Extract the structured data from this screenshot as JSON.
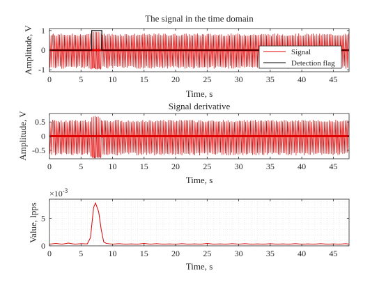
{
  "chart_data": [
    {
      "type": "line",
      "title": "The signal in the time domain",
      "xlabel": "Time, s",
      "ylabel": "Amplitude, V",
      "xlim": [
        0,
        47.5
      ],
      "ylim": [
        -1.1,
        1.1
      ],
      "xticks": [
        0,
        5,
        10,
        15,
        20,
        25,
        30,
        35,
        40,
        45
      ],
      "yticks": [
        -1,
        0,
        1
      ],
      "xtick_labels": [
        "0",
        "5",
        "10",
        "15",
        "20",
        "25",
        "30",
        "35",
        "40",
        "45"
      ],
      "ytick_labels": [
        "-1",
        "0",
        "1"
      ],
      "grid": false,
      "legend_position": "right, inside axes",
      "series": [
        {
          "name": "Signal",
          "color": "#e00000",
          "style": "dense oscillation (pulse train)",
          "segments": [
            {
              "x_range": [
                0,
                6.6
              ],
              "envelope": [
                -0.95,
                0.85
              ]
            },
            {
              "x_range": [
                6.6,
                8.2
              ],
              "envelope": [
                -0.98,
                1.0
              ],
              "note": "saturated burst"
            },
            {
              "x_range": [
                8.2,
                47.5
              ],
              "envelope": [
                -0.95,
                0.85
              ]
            }
          ]
        },
        {
          "name": "Detection flag",
          "color": "#000000",
          "x": [
            0,
            6.7,
            6.7,
            8.3,
            8.3,
            47.5
          ],
          "y": [
            0,
            0,
            1,
            1,
            0,
            0
          ]
        }
      ]
    },
    {
      "type": "line",
      "title": "Signal derivative",
      "xlabel": "Time, s",
      "ylabel": "Amplitude, V",
      "xlim": [
        0,
        47.5
      ],
      "ylim": [
        -0.8,
        0.8
      ],
      "xticks": [
        0,
        5,
        10,
        15,
        20,
        25,
        30,
        35,
        40,
        45
      ],
      "yticks": [
        -0.5,
        0,
        0.5
      ],
      "xtick_labels": [
        "0",
        "5",
        "10",
        "15",
        "20",
        "25",
        "30",
        "35",
        "40",
        "45"
      ],
      "ytick_labels": [
        "-0.5",
        "0",
        "0.5"
      ],
      "grid": false,
      "series": [
        {
          "color": "#e00000",
          "style": "dense oscillation (pulse train)",
          "segments": [
            {
              "x_range": [
                0,
                6.6
              ],
              "envelope": [
                -0.68,
                0.58
              ]
            },
            {
              "x_range": [
                6.6,
                8.2
              ],
              "envelope": [
                -0.78,
                0.72
              ],
              "note": "burst"
            },
            {
              "x_range": [
                8.2,
                47.5
              ],
              "envelope": [
                -0.68,
                0.58
              ]
            }
          ]
        }
      ]
    },
    {
      "type": "line",
      "xlabel": "Time, s",
      "ylabel": "Value, lpps",
      "y_exponent_label": "×10",
      "y_exponent": "-3",
      "xlim": [
        0,
        47.5
      ],
      "ylim": [
        0,
        8.5
      ],
      "xticks": [
        0,
        5,
        10,
        15,
        20,
        25,
        30,
        35,
        40,
        45
      ],
      "yticks": [
        0,
        5
      ],
      "xtick_labels": [
        "0",
        "5",
        "10",
        "15",
        "20",
        "25",
        "30",
        "35",
        "40",
        "45"
      ],
      "ytick_labels": [
        "0",
        "5"
      ],
      "grid": true,
      "series": [
        {
          "color": "#d00000",
          "x": [
            0,
            1,
            2,
            3,
            4,
            5,
            6,
            6.5,
            7,
            7.3,
            7.8,
            8.2,
            8.6,
            9,
            10,
            11,
            12,
            13,
            14,
            15,
            16,
            17,
            18,
            19,
            20,
            21,
            22,
            23,
            24,
            25,
            26,
            27,
            28,
            29,
            30,
            31,
            32,
            33,
            34,
            35,
            36,
            37,
            38,
            39,
            40,
            41,
            42,
            43,
            44,
            45,
            46,
            47,
            47.5
          ],
          "y": [
            0.3,
            0.45,
            0.3,
            0.5,
            0.3,
            0.4,
            0.35,
            1.5,
            7.0,
            7.8,
            6.2,
            3.0,
            0.7,
            0.45,
            0.3,
            0.4,
            0.3,
            0.35,
            0.3,
            0.45,
            0.3,
            0.4,
            0.3,
            0.35,
            0.3,
            0.4,
            0.3,
            0.35,
            0.3,
            0.45,
            0.3,
            0.35,
            0.3,
            0.4,
            0.3,
            0.4,
            0.3,
            0.35,
            0.3,
            0.4,
            0.3,
            0.35,
            0.3,
            0.4,
            0.3,
            0.35,
            0.3,
            0.4,
            0.3,
            0.35,
            0.3,
            0.4,
            0.3
          ]
        }
      ]
    }
  ]
}
